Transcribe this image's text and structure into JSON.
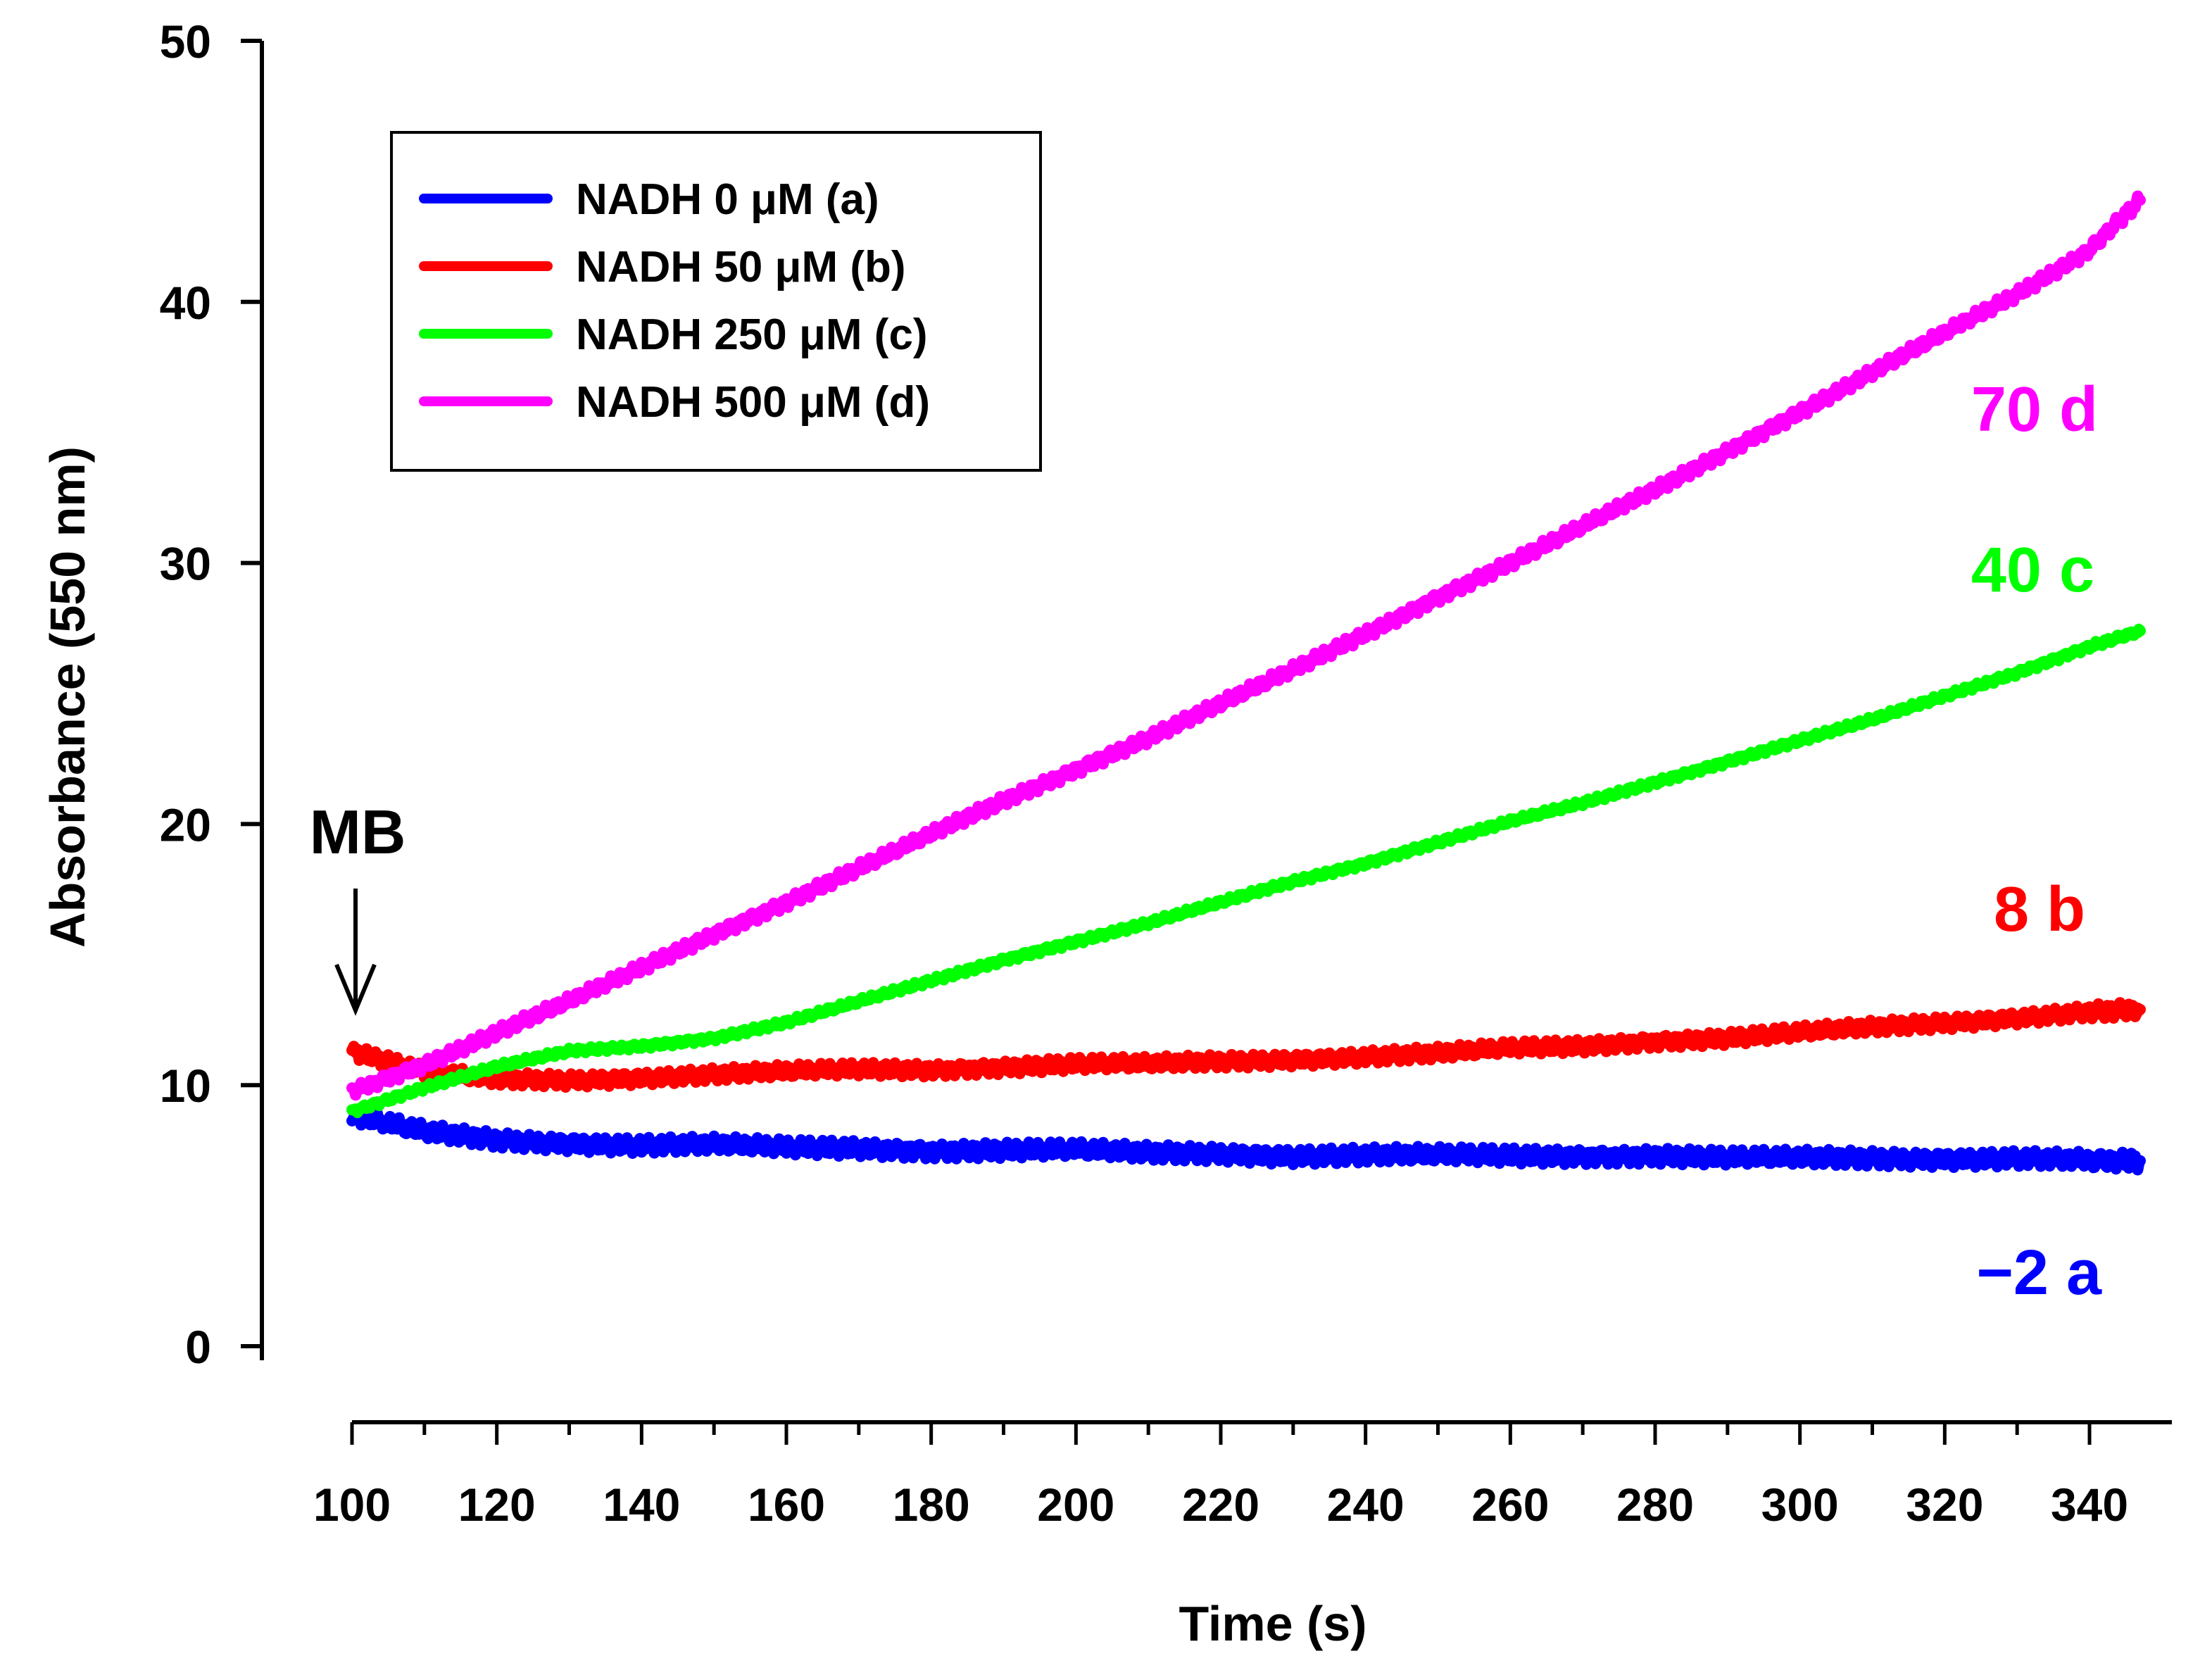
{
  "chart_data": {
    "type": "line",
    "title": "",
    "xlabel": "Time (s)",
    "ylabel": "Absorbance (550 nm)",
    "xlim": [
      100,
      347
    ],
    "ylim": [
      0,
      50
    ],
    "xticks": [
      100,
      120,
      140,
      160,
      180,
      200,
      220,
      240,
      260,
      280,
      300,
      320,
      340
    ],
    "yticks": [
      0,
      10,
      20,
      30,
      40,
      50
    ],
    "grid": false,
    "legend_position": "top-left",
    "annotation": {
      "text": "MB",
      "arrow": "down",
      "x": 100
    },
    "series": [
      {
        "name": "NADH 0 μM (a)",
        "color": "#0000ff",
        "end_label": "−2 a",
        "x": [
          100,
          110,
          120,
          130,
          140,
          150,
          160,
          170,
          180,
          190,
          200,
          210,
          220,
          230,
          240,
          250,
          260,
          270,
          280,
          290,
          300,
          310,
          320,
          330,
          340,
          347
        ],
        "y": [
          8.8,
          8.2,
          7.9,
          7.8,
          7.7,
          7.7,
          7.6,
          7.6,
          7.5,
          7.5,
          7.5,
          7.4,
          7.4,
          7.3,
          7.3,
          7.3,
          7.3,
          7.3,
          7.3,
          7.2,
          7.2,
          7.2,
          7.2,
          7.2,
          7.1,
          7.1
        ]
      },
      {
        "name": "NADH 50 μM (b)",
        "color": "#ff0000",
        "end_label": "8 b",
        "x": [
          100,
          110,
          120,
          130,
          140,
          150,
          160,
          170,
          180,
          190,
          200,
          210,
          220,
          230,
          240,
          250,
          260,
          270,
          280,
          290,
          300,
          310,
          320,
          330,
          340,
          347
        ],
        "y": [
          11.3,
          10.5,
          10.2,
          10.2,
          10.3,
          10.4,
          10.5,
          10.6,
          10.6,
          10.7,
          10.8,
          10.8,
          10.9,
          11.0,
          11.1,
          11.2,
          11.4,
          11.5,
          11.7,
          11.8,
          12.0,
          12.2,
          12.4,
          12.6,
          12.8,
          12.9
        ]
      },
      {
        "name": "NADH 250 μM (c)",
        "color": "#00ff00",
        "end_label": "40 c",
        "x": [
          100,
          110,
          120,
          130,
          140,
          150,
          160,
          170,
          180,
          190,
          200,
          210,
          220,
          230,
          240,
          250,
          260,
          270,
          280,
          290,
          300,
          310,
          320,
          330,
          340,
          347
        ],
        "y": [
          9.0,
          9.9,
          10.7,
          11.3,
          11.5,
          11.8,
          12.4,
          13.2,
          14.0,
          14.8,
          15.5,
          16.2,
          17.0,
          17.8,
          18.5,
          19.3,
          20.1,
          20.8,
          21.6,
          22.4,
          23.2,
          24.0,
          24.9,
          25.8,
          26.8,
          27.4
        ]
      },
      {
        "name": "NADH 500 μM (d)",
        "color": "#ff00ff",
        "end_label": "70 d",
        "x": [
          100,
          110,
          120,
          130,
          140,
          150,
          160,
          170,
          180,
          190,
          200,
          210,
          220,
          230,
          240,
          250,
          260,
          270,
          280,
          290,
          300,
          310,
          320,
          330,
          340,
          347
        ],
        "y": [
          9.8,
          10.8,
          12.0,
          13.2,
          14.5,
          15.8,
          17.0,
          18.3,
          19.6,
          20.9,
          22.1,
          23.3,
          24.6,
          25.9,
          27.3,
          28.7,
          30.0,
          31.4,
          32.8,
          34.3,
          35.8,
          37.3,
          38.8,
          40.3,
          42.0,
          43.9
        ]
      }
    ]
  }
}
